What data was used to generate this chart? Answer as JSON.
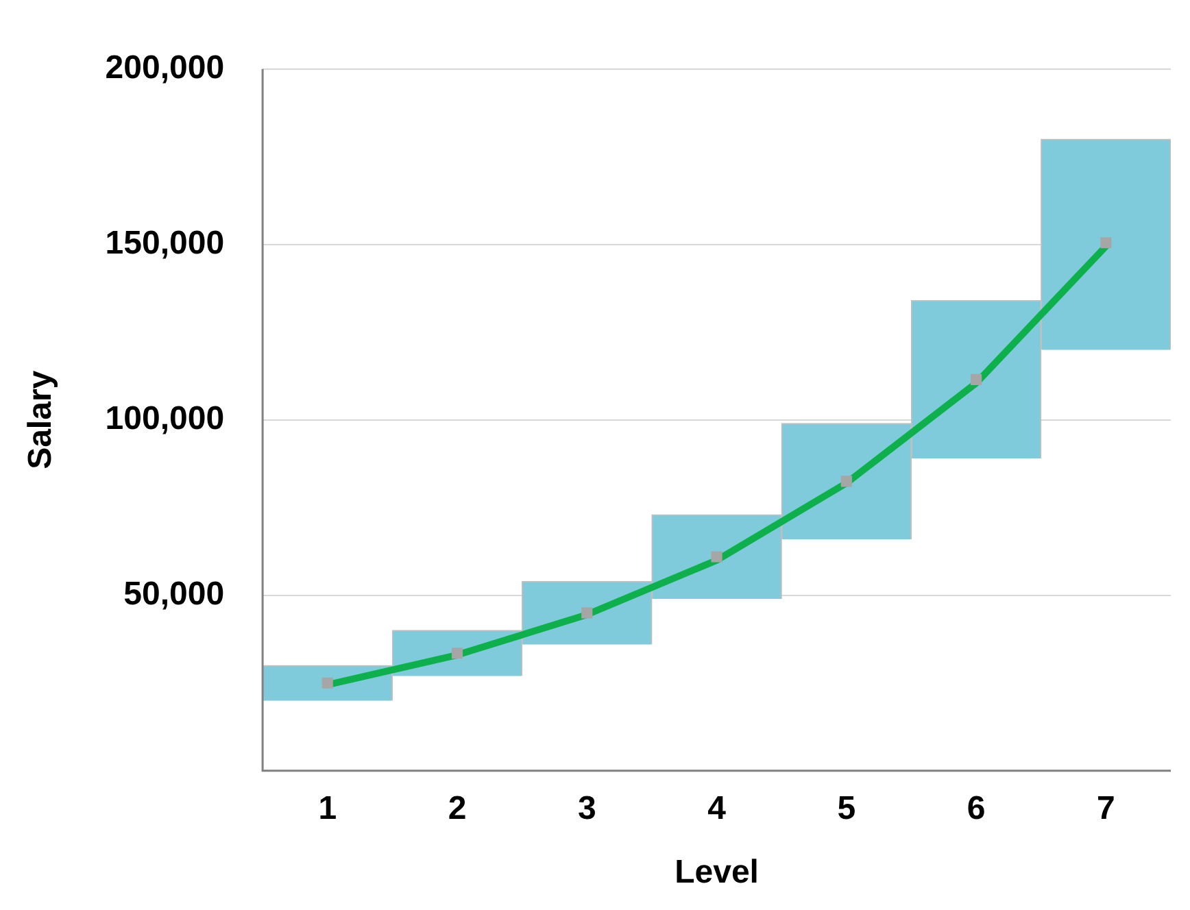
{
  "chart_data": {
    "type": "bar",
    "xlabel": "Level",
    "ylabel": "Salary",
    "categories": [
      "1",
      "2",
      "3",
      "4",
      "5",
      "6",
      "7"
    ],
    "series": [
      {
        "color": "#7fcbdc",
        "base": [
          20000,
          27000,
          36000,
          49000,
          66000,
          89000,
          120000
        ],
        "values": [
          10000,
          13000,
          18000,
          24000,
          33000,
          45000,
          60000
        ]
      },
      {
        "type": "scatter",
        "color": "#a6a6a6",
        "marker": "square",
        "x": [
          "1",
          "2",
          "3",
          "4",
          "5",
          "6",
          "7"
        ],
        "values": [
          25000,
          33500,
          45000,
          61000,
          82500,
          111500,
          150500
        ]
      },
      {
        "type": "line",
        "color": "#0db04b",
        "marker": "none",
        "line_style": "solid",
        "values": [
          24500,
          33000,
          44500,
          60000,
          82000,
          110500,
          149500
        ]
      }
    ],
    "ylim": [
      0,
      200000
    ],
    "yticks": [
      {
        "value": 0,
        "label": null
      },
      {
        "value": 50000,
        "label": "50,000"
      },
      {
        "value": 100000,
        "label": "100,000"
      },
      {
        "value": 150000,
        "label": "150,000"
      },
      {
        "value": 200000,
        "label": "200,000"
      }
    ],
    "grid": "y",
    "legend": false
  }
}
